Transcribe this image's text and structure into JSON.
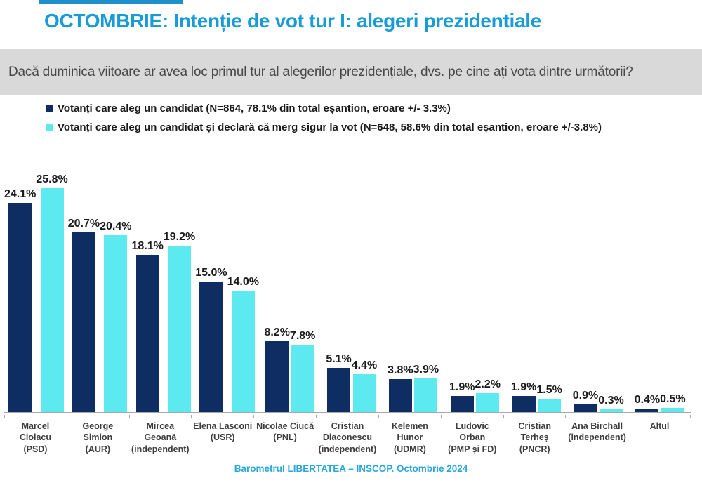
{
  "question": {
    "text": "Dacă duminica viitoare ar avea loc primul tur al alegerilor prezidențiale, dvs. pe cine ați vota dintre următorii?"
  },
  "footer": {
    "text": "Barometrul LIBERTATEA – INSCOP. Octombrie 2024"
  },
  "colors": {
    "title_blue": "#189bd7",
    "footer_blue": "#2aa8dc",
    "question_band_gray": "#d9d9d9",
    "question_text_gray": "#474747",
    "series1_navy": "#0e2d63",
    "series2_cyan": "#5ce9f0",
    "axis_gray": "#a8a8a8",
    "value_label_dark": "#1a1a1a"
  },
  "chart_data": {
    "type": "bar",
    "title": "OCTOMBRIE: Intenție de vot tur I: alegeri prezidentiale",
    "xlabel": "",
    "ylabel": "",
    "ylim": [
      0,
      28
    ],
    "grid": false,
    "legend_position": "top-left",
    "value_label_format": "one-decimal-percent",
    "categories": [
      "Marcel Ciolacu\n(PSD)",
      "George Simion\n(AUR)",
      "Mircea Geoană\n(independent)",
      "Elena Lasconi\n(USR)",
      "Nicolae Ciucă\n(PNL)",
      "Cristian\nDiaconescu\n(independent)",
      "Kelemen Hunor\n(UDMR)",
      "Ludovic Orban\n(PMP și FD)",
      "Cristian Terheș\n(PNCR)",
      "Ana Birchall\n(independent)",
      "Altul"
    ],
    "series": [
      {
        "name": "Votanți care aleg un candidat (N=864, 78.1% din total eșantion, eroare +/- 3.3%)",
        "color": "#0e2d63",
        "values": [
          24.1,
          20.7,
          18.1,
          15.0,
          8.2,
          5.1,
          3.8,
          1.9,
          1.9,
          0.9,
          0.4
        ],
        "labels": [
          "24.1%",
          "20.7%",
          "18.1%",
          "15.0%",
          "8.2%",
          "5.1%",
          "3.8%",
          "1.9%",
          "1.9%",
          "0.9%",
          "0.4%"
        ]
      },
      {
        "name": "Votanți care aleg un candidat și declară că merg sigur la vot (N=648, 58.6% din total eșantion, eroare +/-3.8%)",
        "color": "#5ce9f0",
        "values": [
          25.8,
          20.4,
          19.2,
          14.0,
          7.8,
          4.4,
          3.9,
          2.2,
          1.5,
          0.3,
          0.5
        ],
        "labels": [
          "25.8%",
          "20.4%",
          "19.2%",
          "14.0%",
          "7.8%",
          "4.4%",
          "3.9%",
          "2.2%",
          "1.5%",
          "0.3%",
          "0.5%"
        ]
      }
    ]
  }
}
